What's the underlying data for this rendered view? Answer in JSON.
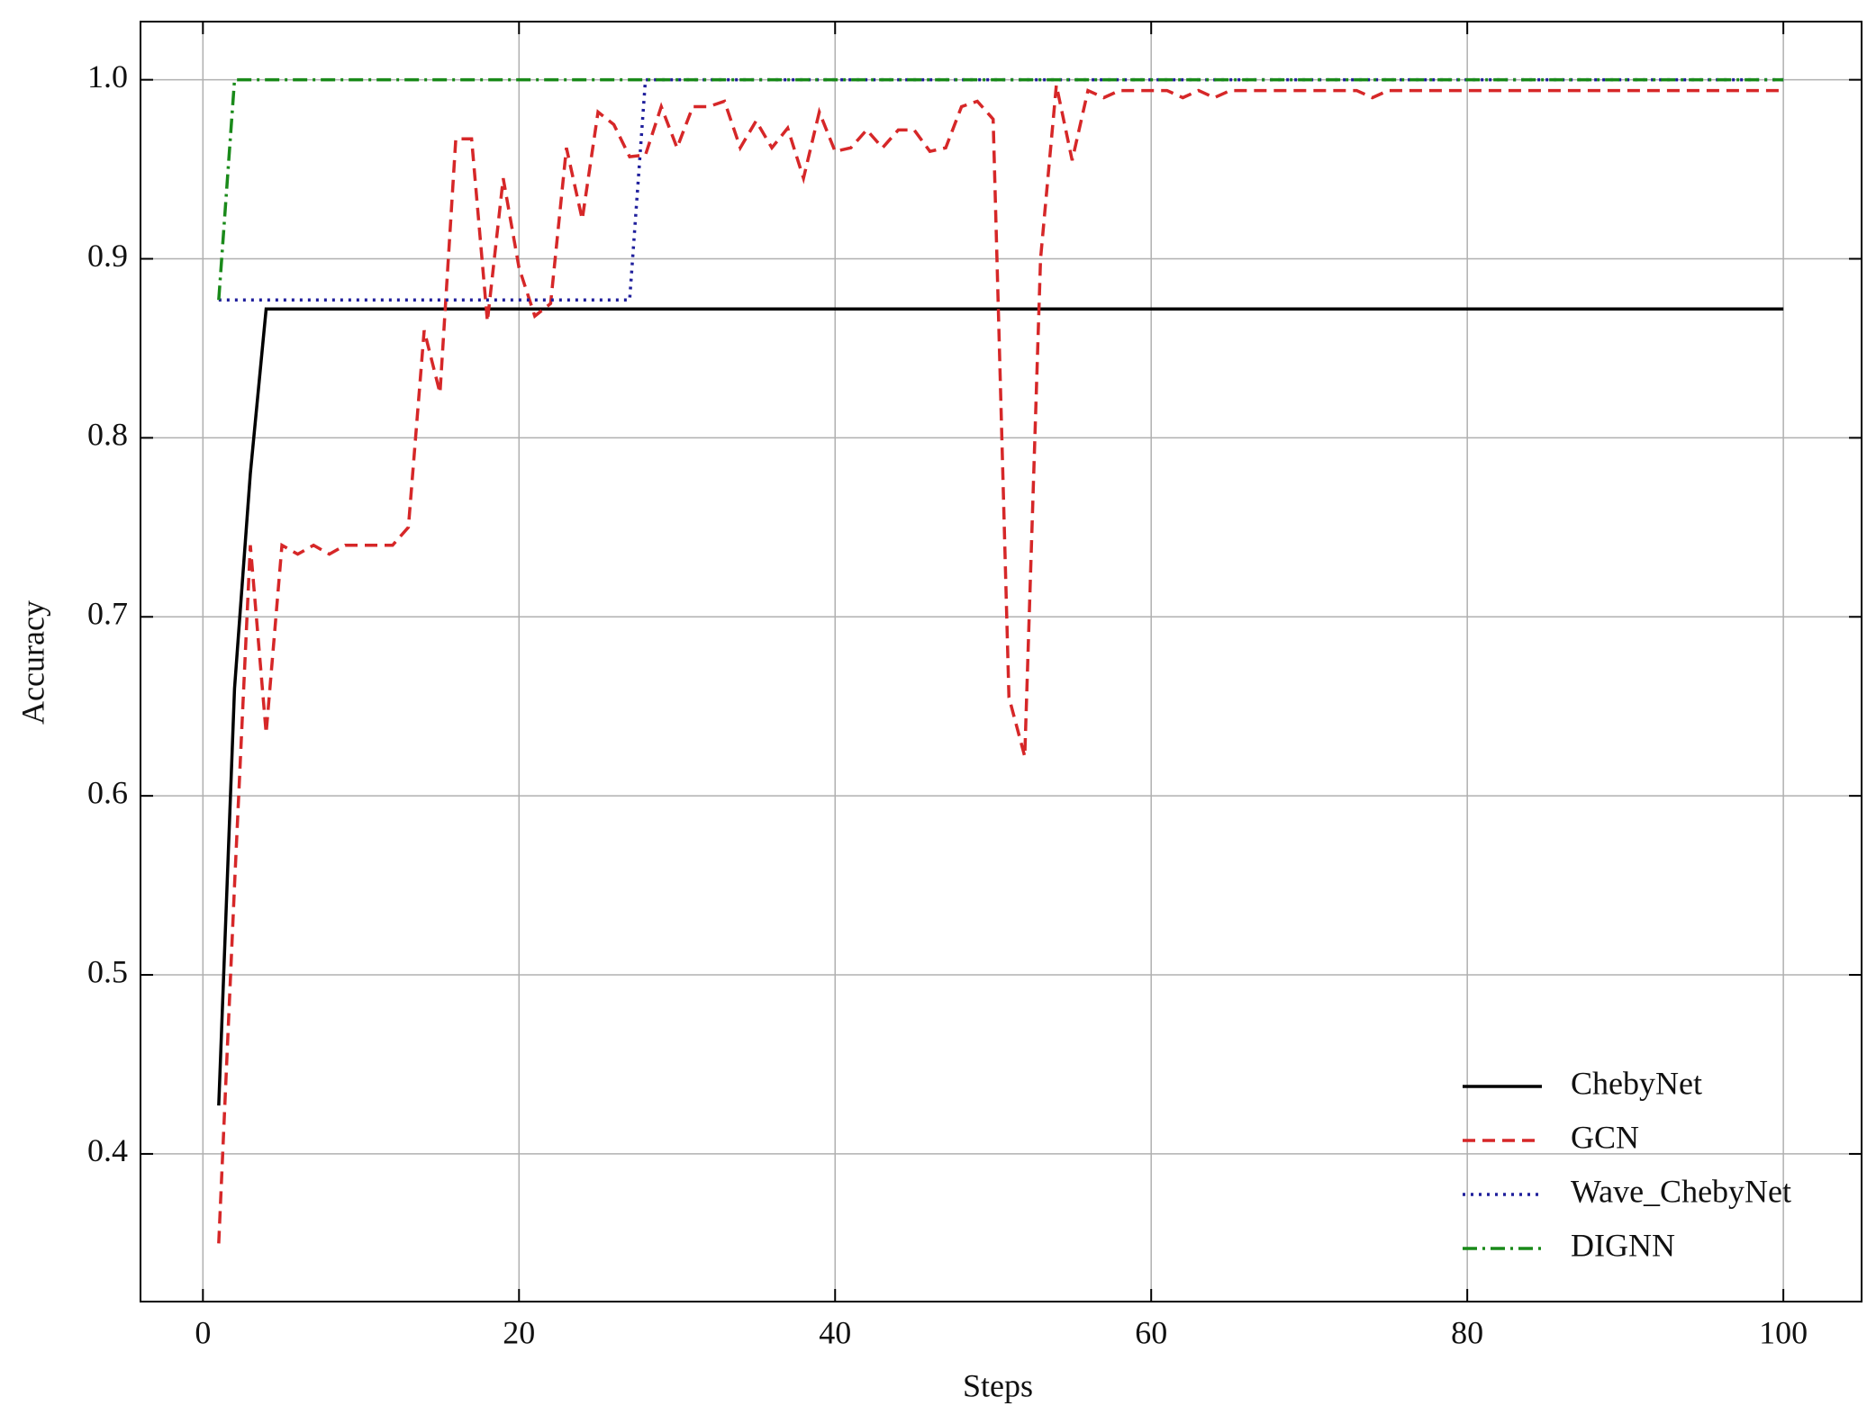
{
  "chart_data": {
    "type": "line",
    "xlabel": "Steps",
    "ylabel": "Accuracy",
    "x": [
      1,
      2,
      3,
      4,
      5,
      6,
      7,
      8,
      9,
      10,
      11,
      12,
      13,
      14,
      15,
      16,
      17,
      18,
      19,
      20,
      21,
      22,
      23,
      24,
      25,
      26,
      27,
      28,
      29,
      30,
      31,
      32,
      33,
      34,
      35,
      36,
      37,
      38,
      39,
      40,
      41,
      42,
      43,
      44,
      45,
      46,
      47,
      48,
      49,
      50,
      51,
      52,
      53,
      54,
      55,
      56,
      57,
      58,
      59,
      60,
      61,
      62,
      63,
      64,
      65,
      66,
      67,
      68,
      69,
      70,
      71,
      72,
      73,
      74,
      75,
      76,
      77,
      78,
      79,
      80,
      81,
      82,
      83,
      84,
      85,
      86,
      87,
      88,
      89,
      90,
      91,
      92,
      93,
      94,
      95,
      96,
      97,
      98,
      99,
      100
    ],
    "series": [
      {
        "name": "ChebyNet",
        "color": "#000000",
        "linestyle": "solid",
        "values": [
          0.427,
          0.66,
          0.78,
          0.872,
          0.872,
          0.872,
          0.872,
          0.872,
          0.872,
          0.872,
          0.872,
          0.872,
          0.872,
          0.872,
          0.872,
          0.872,
          0.872,
          0.872,
          0.872,
          0.872,
          0.872,
          0.872,
          0.872,
          0.872,
          0.872,
          0.872,
          0.872,
          0.872,
          0.872,
          0.872,
          0.872,
          0.872,
          0.872,
          0.872,
          0.872,
          0.872,
          0.872,
          0.872,
          0.872,
          0.872,
          0.872,
          0.872,
          0.872,
          0.872,
          0.872,
          0.872,
          0.872,
          0.872,
          0.872,
          0.872,
          0.872,
          0.872,
          0.872,
          0.872,
          0.872,
          0.872,
          0.872,
          0.872,
          0.872,
          0.872,
          0.872,
          0.872,
          0.872,
          0.872,
          0.872,
          0.872,
          0.872,
          0.872,
          0.872,
          0.872,
          0.872,
          0.872,
          0.872,
          0.872,
          0.872,
          0.872,
          0.872,
          0.872,
          0.872,
          0.872,
          0.872,
          0.872,
          0.872,
          0.872,
          0.872,
          0.872,
          0.872,
          0.872,
          0.872,
          0.872,
          0.872,
          0.872,
          0.872,
          0.872,
          0.872,
          0.872,
          0.872,
          0.872,
          0.872,
          0.872
        ]
      },
      {
        "name": "GCN",
        "color": "#d62728",
        "linestyle": "dashed",
        "values": [
          0.35,
          0.55,
          0.74,
          0.635,
          0.74,
          0.735,
          0.74,
          0.735,
          0.74,
          0.74,
          0.74,
          0.74,
          0.75,
          0.86,
          0.825,
          0.967,
          0.967,
          0.865,
          0.945,
          0.895,
          0.868,
          0.875,
          0.962,
          0.922,
          0.982,
          0.975,
          0.957,
          0.958,
          0.985,
          0.962,
          0.985,
          0.985,
          0.988,
          0.962,
          0.977,
          0.962,
          0.973,
          0.945,
          0.982,
          0.96,
          0.962,
          0.972,
          0.962,
          0.972,
          0.972,
          0.96,
          0.962,
          0.985,
          0.988,
          0.978,
          0.655,
          0.622,
          0.9,
          0.997,
          0.955,
          0.994,
          0.99,
          0.994,
          0.994,
          0.994,
          0.994,
          0.99,
          0.994,
          0.99,
          0.994,
          0.994,
          0.994,
          0.994,
          0.994,
          0.994,
          0.994,
          0.994,
          0.994,
          0.99,
          0.994,
          0.994,
          0.994,
          0.994,
          0.994,
          0.994,
          0.994,
          0.994,
          0.994,
          0.994,
          0.994,
          0.994,
          0.994,
          0.994,
          0.994,
          0.994,
          0.994,
          0.994,
          0.994,
          0.994,
          0.994,
          0.994,
          0.994,
          0.994,
          0.994,
          0.994
        ]
      },
      {
        "name": "Wave_ChebyNet",
        "color": "#1f1f9c",
        "linestyle": "dotted",
        "values": [
          0.877,
          0.877,
          0.877,
          0.877,
          0.877,
          0.877,
          0.877,
          0.877,
          0.877,
          0.877,
          0.877,
          0.877,
          0.877,
          0.877,
          0.877,
          0.877,
          0.877,
          0.877,
          0.877,
          0.877,
          0.877,
          0.877,
          0.877,
          0.877,
          0.877,
          0.877,
          0.877,
          1.0,
          1.0,
          1.0,
          1.0,
          1.0,
          1.0,
          1.0,
          1.0,
          1.0,
          1.0,
          1.0,
          1.0,
          1.0,
          1.0,
          1.0,
          1.0,
          1.0,
          1.0,
          1.0,
          1.0,
          1.0,
          1.0,
          1.0,
          1.0,
          1.0,
          1.0,
          1.0,
          1.0,
          1.0,
          1.0,
          1.0,
          1.0,
          1.0,
          1.0,
          1.0,
          1.0,
          1.0,
          1.0,
          1.0,
          1.0,
          1.0,
          1.0,
          1.0,
          1.0,
          1.0,
          1.0,
          1.0,
          1.0,
          1.0,
          1.0,
          1.0,
          1.0,
          1.0,
          1.0,
          1.0,
          1.0,
          1.0,
          1.0,
          1.0,
          1.0,
          1.0,
          1.0,
          1.0,
          1.0,
          1.0,
          1.0,
          1.0,
          1.0,
          1.0,
          1.0,
          1.0,
          1.0,
          1.0
        ]
      },
      {
        "name": "DIGNN",
        "color": "#1a8a1a",
        "linestyle": "dashdot",
        "values": [
          0.877,
          1.0,
          1.0,
          1.0,
          1.0,
          1.0,
          1.0,
          1.0,
          1.0,
          1.0,
          1.0,
          1.0,
          1.0,
          1.0,
          1.0,
          1.0,
          1.0,
          1.0,
          1.0,
          1.0,
          1.0,
          1.0,
          1.0,
          1.0,
          1.0,
          1.0,
          1.0,
          1.0,
          1.0,
          1.0,
          1.0,
          1.0,
          1.0,
          1.0,
          1.0,
          1.0,
          1.0,
          1.0,
          1.0,
          1.0,
          1.0,
          1.0,
          1.0,
          1.0,
          1.0,
          1.0,
          1.0,
          1.0,
          1.0,
          1.0,
          1.0,
          1.0,
          1.0,
          1.0,
          1.0,
          1.0,
          1.0,
          1.0,
          1.0,
          1.0,
          1.0,
          1.0,
          1.0,
          1.0,
          1.0,
          1.0,
          1.0,
          1.0,
          1.0,
          1.0,
          1.0,
          1.0,
          1.0,
          1.0,
          1.0,
          1.0,
          1.0,
          1.0,
          1.0,
          1.0,
          1.0,
          1.0,
          1.0,
          1.0,
          1.0,
          1.0,
          1.0,
          1.0,
          1.0,
          1.0,
          1.0,
          1.0,
          1.0,
          1.0,
          1.0,
          1.0,
          1.0,
          1.0,
          1.0,
          1.0
        ]
      }
    ],
    "xlim": [
      -3.95,
      104.95
    ],
    "xticks": [
      0,
      20,
      40,
      60,
      80,
      100
    ],
    "ylim": [
      0.3175,
      1.0325
    ],
    "yticks": [
      0.4,
      0.5,
      0.6,
      0.7,
      0.8,
      0.9,
      {
        "value": 1.0,
        "label": "1.0"
      }
    ],
    "grid": true,
    "legend": "lower right"
  }
}
